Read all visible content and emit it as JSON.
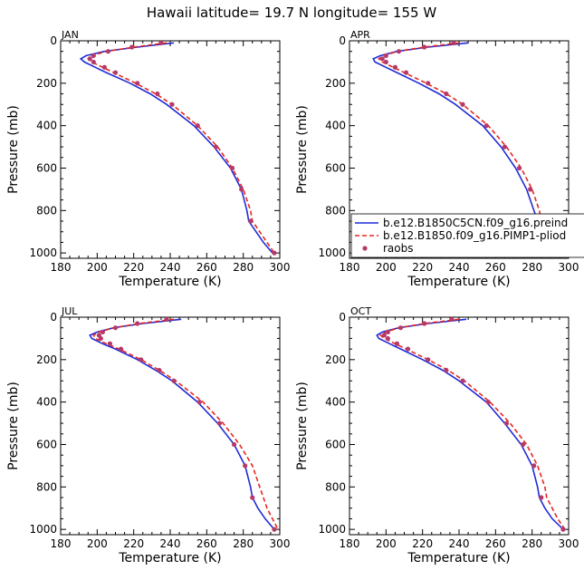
{
  "title": "Hawaii  latitude= 19.7 N longitude= 155 W",
  "colors": {
    "model1": "#1f2bd6",
    "model2": "#e8261e",
    "obs": "#b53a6a"
  },
  "legend": {
    "placement": "inside APR panel, lower-left",
    "items": [
      {
        "label": "b.e12.B1850C5CN.f09_g16.preind",
        "style": "solid"
      },
      {
        "label": "b.e12.B1850.f09_g16.PIMP1-pliod",
        "style": "dashed"
      },
      {
        "label": "raobs",
        "style": "dots"
      }
    ]
  },
  "chart_data": [
    {
      "type": "line",
      "panel": "JAN",
      "xlabel": "Temperature (K)",
      "ylabel": "Pressure (mb)",
      "xlim": [
        180,
        300
      ],
      "ylim": [
        1025,
        0
      ],
      "yinverted": true,
      "xticks": [
        180,
        200,
        220,
        240,
        260,
        280,
        300
      ],
      "yticks": [
        0,
        200,
        400,
        600,
        800,
        1000
      ],
      "series": [
        {
          "name": "b.e12.B1850C5CN.f09_g16.preind",
          "p": [
            10,
            30,
            50,
            70,
            85,
            100,
            125,
            150,
            200,
            250,
            300,
            400,
            500,
            600,
            700,
            800,
            850,
            900,
            950,
            1000
          ],
          "t": [
            242,
            222,
            204,
            194,
            191,
            193,
            199,
            205,
            218,
            229,
            238,
            253,
            264,
            273,
            279,
            282,
            283,
            287,
            291,
            296
          ]
        },
        {
          "name": "b.e12.B1850.f09_g16.PIMP1-pliod",
          "p": [
            10,
            30,
            50,
            70,
            85,
            100,
            125,
            150,
            200,
            250,
            300,
            400,
            500,
            600,
            700,
            800,
            850,
            900,
            950,
            1000
          ],
          "t": [
            238,
            220,
            205,
            197,
            195,
            197,
            203,
            209,
            221,
            232,
            241,
            255,
            266,
            274,
            280,
            284,
            285,
            289,
            293,
            297
          ]
        },
        {
          "name": "raobs",
          "p": [
            10,
            30,
            50,
            70,
            85,
            100,
            125,
            150,
            200,
            250,
            300,
            400,
            500,
            600,
            700,
            850,
            1000
          ],
          "t": [
            235,
            219,
            206,
            198,
            196,
            198,
            204,
            210,
            222,
            233,
            241,
            255,
            265,
            274,
            279,
            284,
            297
          ]
        }
      ]
    },
    {
      "type": "line",
      "panel": "APR",
      "xlabel": "Temperature (K)",
      "ylabel": "Pressure (mb)",
      "xlim": [
        180,
        300
      ],
      "ylim": [
        1025,
        0
      ],
      "yinverted": true,
      "xticks": [
        180,
        200,
        220,
        240,
        260,
        280,
        300
      ],
      "yticks": [
        0,
        200,
        400,
        600,
        800,
        1000
      ],
      "series": [
        {
          "name": "b.e12.B1850C5CN.f09_g16.preind",
          "p": [
            10,
            30,
            50,
            70,
            85,
            100,
            125,
            150,
            200,
            250,
            300,
            400,
            500,
            600,
            700,
            800,
            850,
            900,
            950,
            1000
          ],
          "t": [
            245,
            223,
            206,
            197,
            193,
            194,
            200,
            206,
            218,
            229,
            238,
            253,
            263,
            271,
            277,
            281,
            283,
            286,
            290,
            296
          ]
        },
        {
          "name": "b.e12.B1850.f09_g16.PIMP1-pliod",
          "p": [
            10,
            30,
            50,
            70,
            85,
            100,
            125,
            150,
            200,
            250,
            300,
            400,
            500,
            600,
            700,
            800,
            850,
            900,
            950,
            1000
          ],
          "t": [
            240,
            221,
            206,
            199,
            196,
            198,
            204,
            210,
            222,
            233,
            242,
            256,
            266,
            274,
            280,
            284,
            285,
            289,
            293,
            298
          ]
        },
        {
          "name": "raobs",
          "p": [
            10,
            30,
            50,
            70,
            85,
            100,
            125,
            150,
            200,
            250,
            300,
            400,
            500,
            600,
            700,
            850,
            1000
          ],
          "t": [
            237,
            221,
            207,
            200,
            198,
            200,
            205,
            211,
            223,
            233,
            242,
            255,
            265,
            273,
            279,
            284,
            296
          ]
        }
      ]
    },
    {
      "type": "line",
      "panel": "JUL",
      "xlabel": "Temperature (K)",
      "ylabel": "Pressure (mb)",
      "xlim": [
        180,
        300
      ],
      "ylim": [
        1025,
        0
      ],
      "yinverted": true,
      "xticks": [
        180,
        200,
        220,
        240,
        260,
        280,
        300
      ],
      "yticks": [
        0,
        200,
        400,
        600,
        800,
        1000
      ],
      "series": [
        {
          "name": "b.e12.B1850C5CN.f09_g16.preind",
          "p": [
            10,
            30,
            50,
            70,
            85,
            100,
            125,
            150,
            200,
            250,
            300,
            400,
            500,
            600,
            700,
            800,
            850,
            900,
            950,
            1000
          ],
          "t": [
            246,
            225,
            209,
            200,
            196,
            197,
            203,
            210,
            222,
            232,
            241,
            255,
            266,
            275,
            281,
            284,
            285,
            288,
            292,
            297
          ]
        },
        {
          "name": "b.e12.B1850.f09_g16.PIMP1-pliod",
          "p": [
            10,
            30,
            50,
            70,
            85,
            100,
            125,
            150,
            200,
            250,
            300,
            400,
            500,
            600,
            700,
            800,
            850,
            900,
            950,
            1000
          ],
          "t": [
            242,
            223,
            209,
            201,
            198,
            199,
            205,
            212,
            224,
            234,
            243,
            258,
            269,
            278,
            285,
            289,
            291,
            293,
            296,
            299
          ]
        },
        {
          "name": "raobs",
          "p": [
            10,
            30,
            50,
            70,
            85,
            100,
            125,
            150,
            200,
            250,
            300,
            400,
            500,
            600,
            700,
            850,
            1000
          ],
          "t": [
            238,
            222,
            210,
            203,
            201,
            202,
            207,
            213,
            224,
            234,
            242,
            256,
            267,
            275,
            281,
            285,
            297
          ]
        }
      ]
    },
    {
      "type": "line",
      "panel": "OCT",
      "xlabel": "Temperature (K)",
      "ylabel": "Pressure (mb)",
      "xlim": [
        180,
        300
      ],
      "ylim": [
        1025,
        0
      ],
      "yinverted": true,
      "xticks": [
        180,
        200,
        220,
        240,
        260,
        280,
        300
      ],
      "yticks": [
        0,
        200,
        400,
        600,
        800,
        1000
      ],
      "series": [
        {
          "name": "b.e12.B1850C5CN.f09_g16.preind",
          "p": [
            10,
            30,
            50,
            70,
            85,
            100,
            125,
            150,
            200,
            250,
            300,
            400,
            500,
            600,
            700,
            800,
            850,
            900,
            950,
            1000
          ],
          "t": [
            244,
            223,
            207,
            198,
            195,
            196,
            202,
            208,
            220,
            231,
            240,
            255,
            265,
            274,
            280,
            283,
            284,
            287,
            291,
            297
          ]
        },
        {
          "name": "b.e12.B1850.f09_g16.PIMP1-pliod",
          "p": [
            10,
            30,
            50,
            70,
            85,
            100,
            125,
            150,
            200,
            250,
            300,
            400,
            500,
            600,
            700,
            800,
            850,
            900,
            950,
            1000
          ],
          "t": [
            240,
            221,
            207,
            200,
            197,
            199,
            205,
            211,
            223,
            234,
            243,
            257,
            268,
            277,
            283,
            287,
            288,
            291,
            294,
            298
          ]
        },
        {
          "name": "raobs",
          "p": [
            10,
            30,
            50,
            70,
            85,
            100,
            125,
            150,
            200,
            250,
            300,
            400,
            500,
            600,
            700,
            850,
            1000
          ],
          "t": [
            236,
            221,
            208,
            201,
            199,
            201,
            206,
            212,
            223,
            233,
            242,
            256,
            266,
            275,
            281,
            285,
            297
          ]
        }
      ]
    }
  ]
}
